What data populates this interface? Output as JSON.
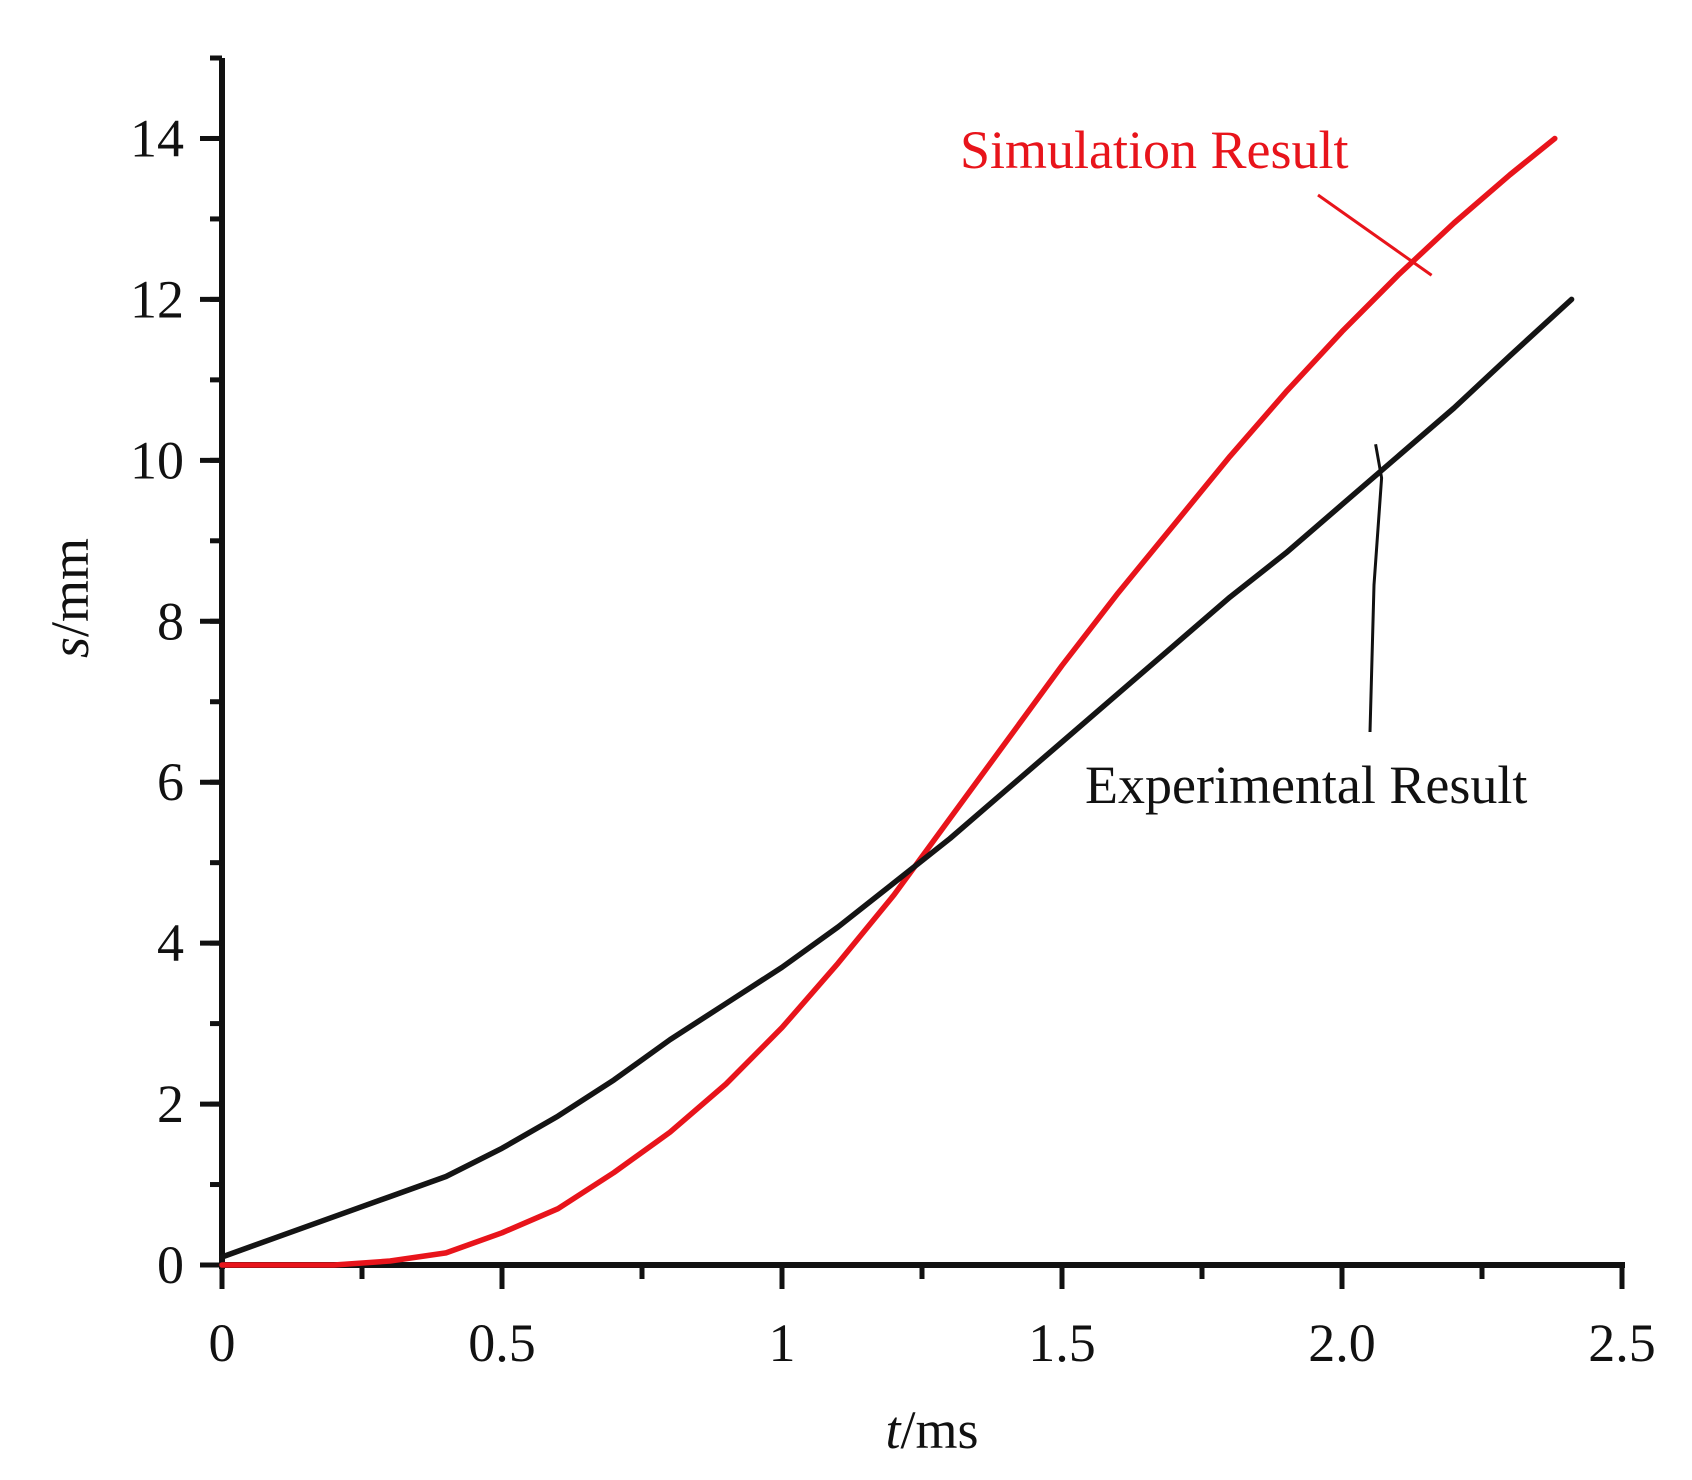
{
  "chart_data": {
    "type": "line",
    "title": "",
    "xlabel_var": "t",
    "xlabel_unit": "/ms",
    "ylabel_var": "s",
    "ylabel_unit": "/mm",
    "xlim": [
      0,
      2.5
    ],
    "ylim": [
      0,
      15
    ],
    "x_ticks": [
      {
        "value": 0,
        "label": "0"
      },
      {
        "value": 0.5,
        "label": "0.5"
      },
      {
        "value": 1,
        "label": "1"
      },
      {
        "value": 1.5,
        "label": "1.5"
      },
      {
        "value": 2.0,
        "label": "2.0"
      },
      {
        "value": 2.5,
        "label": "2.5"
      }
    ],
    "y_ticks": [
      {
        "value": 0,
        "label": "0"
      },
      {
        "value": 2,
        "label": "2"
      },
      {
        "value": 4,
        "label": "4"
      },
      {
        "value": 6,
        "label": "6"
      },
      {
        "value": 8,
        "label": "8"
      },
      {
        "value": 10,
        "label": "10"
      },
      {
        "value": 12,
        "label": "12"
      },
      {
        "value": 14,
        "label": "14"
      }
    ],
    "x_minor_step": 0.25,
    "y_minor_step": 1,
    "grid": false,
    "series": [
      {
        "name": "Simulation Result",
        "color": "#e8141b",
        "x": [
          0,
          0.1,
          0.2,
          0.3,
          0.4,
          0.5,
          0.6,
          0.7,
          0.8,
          0.9,
          1.0,
          1.1,
          1.2,
          1.3,
          1.4,
          1.5,
          1.6,
          1.7,
          1.8,
          1.9,
          2.0,
          2.1,
          2.2,
          2.3,
          2.38
        ],
        "y": [
          0,
          0,
          0,
          0.05,
          0.15,
          0.4,
          0.7,
          1.15,
          1.65,
          2.25,
          2.95,
          3.75,
          4.6,
          5.55,
          6.5,
          7.45,
          8.35,
          9.2,
          10.05,
          10.85,
          11.6,
          12.3,
          12.95,
          13.55,
          14.0
        ]
      },
      {
        "name": "Experimental Result",
        "color": "#141414",
        "x": [
          0,
          0.1,
          0.2,
          0.3,
          0.4,
          0.5,
          0.6,
          0.7,
          0.8,
          0.9,
          1.0,
          1.1,
          1.2,
          1.3,
          1.4,
          1.5,
          1.6,
          1.7,
          1.8,
          1.9,
          2.0,
          2.1,
          2.2,
          2.3,
          2.41
        ],
        "y": [
          0.1,
          0.35,
          0.6,
          0.85,
          1.1,
          1.45,
          1.85,
          2.3,
          2.8,
          3.25,
          3.7,
          4.2,
          4.75,
          5.3,
          5.9,
          6.5,
          7.1,
          7.7,
          8.3,
          8.85,
          9.45,
          10.05,
          10.65,
          11.3,
          12.0
        ]
      }
    ],
    "annotations": [
      {
        "text": "Simulation Result",
        "color": "#e8141b",
        "points_to": {
          "x": 2.16,
          "y": 12.3
        }
      },
      {
        "text": "Experimental Result",
        "color": "#111111",
        "points_to": {
          "x": 2.06,
          "y": 10.2
        }
      }
    ]
  }
}
